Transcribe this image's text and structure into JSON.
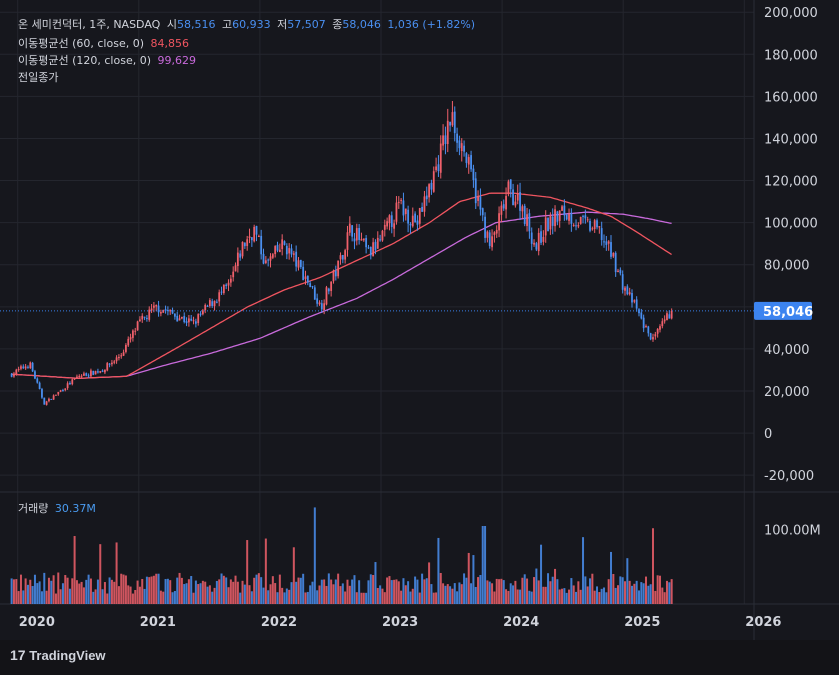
{
  "colors": {
    "background": "#131317",
    "panel": "#16171d",
    "grid": "#24262e",
    "up": "#f0606b",
    "down": "#4a8ff0",
    "ma60": "#f05560",
    "ma120": "#c86adb",
    "price_line": "#3a7fe8",
    "price_tag": "#3c84f0",
    "text": "#d1d4dc",
    "volume_label": "#4a9bf0"
  },
  "legend": {
    "title": "온 세미컨덕터, 1주, NASDAQ",
    "open_label": "시",
    "open": "58,516",
    "high_label": "고",
    "high": "60,933",
    "low_label": "저",
    "low": "57,507",
    "close_label": "종",
    "close": "58,046",
    "change": "1,036 (+1.82%)",
    "ma60_label": "이동평균선 (60, close, 0)",
    "ma60_value": "84,856",
    "ma120_label": "이동평균선 (120, close, 0)",
    "ma120_value": "99,629",
    "prev_close_label": "전일종가"
  },
  "volume_legend": {
    "label": "거래량",
    "value": "30.37M"
  },
  "price_tag": "58,046",
  "brand": "TradingView",
  "chart_data": {
    "type": "candlestick",
    "interval": "1주",
    "y_ticks": [
      "200,000",
      "180,000",
      "160,000",
      "140,000",
      "120,000",
      "100,000",
      "80,000",
      "60,000",
      "40,000",
      "20,000",
      "0",
      "-20,000"
    ],
    "y_tick_values": [
      200000,
      180000,
      160000,
      140000,
      120000,
      100000,
      80000,
      60000,
      40000,
      20000,
      0,
      -20000
    ],
    "ylim": [
      -28000,
      202000
    ],
    "volume_ticks": [
      "100.00M"
    ],
    "volume_tick_values": [
      100000000
    ],
    "x_labels": [
      "2020",
      "2021",
      "2022",
      "2023",
      "2024",
      "2025",
      "2026"
    ],
    "x_label_values": [
      2020.0,
      2021.0,
      2022.0,
      2023.0,
      2024.0,
      2025.0,
      2026.0
    ],
    "xlim": [
      2019.92,
      2026.08
    ],
    "last_price": 58046,
    "price_anchors": [
      [
        2019.95,
        28000
      ],
      [
        2020.1,
        33000
      ],
      [
        2020.22,
        14000
      ],
      [
        2020.35,
        20000
      ],
      [
        2020.5,
        27000
      ],
      [
        2020.7,
        30000
      ],
      [
        2020.85,
        37000
      ],
      [
        2021.0,
        52000
      ],
      [
        2021.15,
        60000
      ],
      [
        2021.3,
        56000
      ],
      [
        2021.45,
        52000
      ],
      [
        2021.6,
        62000
      ],
      [
        2021.75,
        70000
      ],
      [
        2021.85,
        88000
      ],
      [
        2021.95,
        97000
      ],
      [
        2022.05,
        80000
      ],
      [
        2022.2,
        90000
      ],
      [
        2022.4,
        72000
      ],
      [
        2022.5,
        60000
      ],
      [
        2022.65,
        80000
      ],
      [
        2022.75,
        98000
      ],
      [
        2022.9,
        85000
      ],
      [
        2023.0,
        92000
      ],
      [
        2023.15,
        108000
      ],
      [
        2023.3,
        100000
      ],
      [
        2023.45,
        125000
      ],
      [
        2023.58,
        150000
      ],
      [
        2023.68,
        135000
      ],
      [
        2023.8,
        110000
      ],
      [
        2023.9,
        88000
      ],
      [
        2023.97,
        100000
      ],
      [
        2024.05,
        115000
      ],
      [
        2024.15,
        110000
      ],
      [
        2024.28,
        88000
      ],
      [
        2024.35,
        98000
      ],
      [
        2024.5,
        105000
      ],
      [
        2024.65,
        100000
      ],
      [
        2024.8,
        96000
      ],
      [
        2024.92,
        83000
      ],
      [
        2025.0,
        70000
      ],
      [
        2025.1,
        60000
      ],
      [
        2025.18,
        50000
      ],
      [
        2025.25,
        44000
      ],
      [
        2025.33,
        52000
      ],
      [
        2025.4,
        58046
      ]
    ],
    "ma60_anchors": [
      [
        2019.95,
        28000
      ],
      [
        2020.5,
        26000
      ],
      [
        2020.9,
        27000
      ],
      [
        2021.3,
        40000
      ],
      [
        2021.6,
        50000
      ],
      [
        2021.9,
        60000
      ],
      [
        2022.2,
        68000
      ],
      [
        2022.5,
        74000
      ],
      [
        2022.8,
        82000
      ],
      [
        2023.1,
        90000
      ],
      [
        2023.4,
        100000
      ],
      [
        2023.65,
        110000
      ],
      [
        2023.9,
        114000
      ],
      [
        2024.1,
        114000
      ],
      [
        2024.4,
        112000
      ],
      [
        2024.7,
        107000
      ],
      [
        2024.9,
        103000
      ],
      [
        2025.1,
        96000
      ],
      [
        2025.4,
        84856
      ]
    ],
    "ma120_anchors": [
      [
        2019.95,
        28000
      ],
      [
        2020.5,
        26000
      ],
      [
        2020.9,
        27000
      ],
      [
        2021.2,
        32000
      ],
      [
        2021.6,
        38000
      ],
      [
        2022.0,
        45000
      ],
      [
        2022.4,
        55000
      ],
      [
        2022.8,
        64000
      ],
      [
        2023.1,
        73000
      ],
      [
        2023.4,
        83000
      ],
      [
        2023.7,
        93000
      ],
      [
        2023.95,
        100000
      ],
      [
        2024.3,
        103000
      ],
      [
        2024.7,
        105000
      ],
      [
        2025.0,
        104000
      ],
      [
        2025.2,
        102000
      ],
      [
        2025.4,
        99629
      ]
    ]
  }
}
